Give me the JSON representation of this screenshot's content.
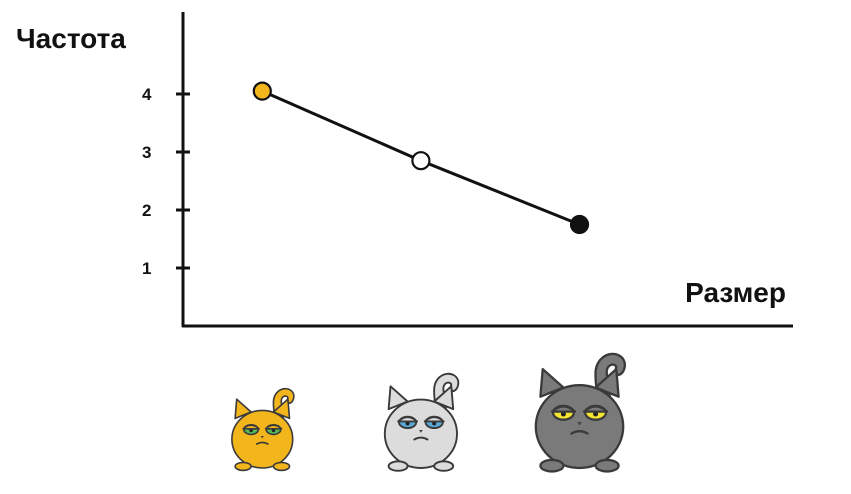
{
  "chart_data": {
    "type": "line",
    "ylabel": "Частота",
    "xlabel": "Размер",
    "yticks": [
      1,
      2,
      3,
      4
    ],
    "ylim": [
      0,
      4.75
    ],
    "xlim": [
      0,
      10
    ],
    "series": [
      {
        "points": [
          {
            "x": 1.3,
            "y": 4.05,
            "fill": "#f2b51c",
            "icon": "orange-cat-icon"
          },
          {
            "x": 3.9,
            "y": 2.85,
            "fill": "#ffffff",
            "icon": "white-cat-icon"
          },
          {
            "x": 6.5,
            "y": 1.75,
            "fill": "#111111",
            "icon": "gray-cat-icon"
          }
        ]
      }
    ],
    "grid": false,
    "legend": "none"
  },
  "cats": [
    {
      "name": "orange-cat-icon",
      "body": "#f2b51c",
      "eye": "#58b85a",
      "scale": 0.8
    },
    {
      "name": "white-cat-icon",
      "body": "#dcdcdc",
      "eye": "#5aa9d8",
      "scale": 0.95
    },
    {
      "name": "gray-cat-icon",
      "body": "#7a7a7a",
      "eye": "#f4e533",
      "scale": 1.15
    }
  ]
}
